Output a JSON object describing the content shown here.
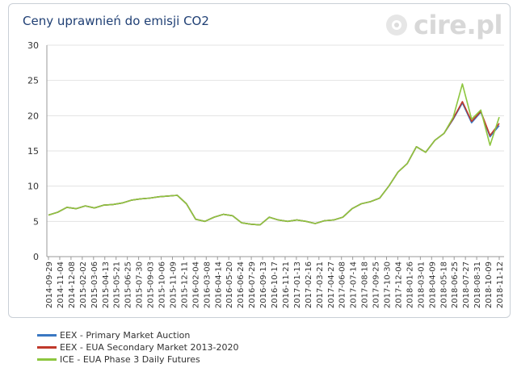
{
  "title": "Ceny uprawnień do emisji CO2",
  "logo": {
    "text": "cire.pl"
  },
  "chart_data": {
    "type": "line",
    "title": "Ceny uprawnień do emisji CO2",
    "xlabel": "",
    "ylabel": "",
    "ylim": [
      0,
      30
    ],
    "yticks": [
      "0",
      "5",
      "10",
      "15",
      "20",
      "25",
      "30"
    ],
    "grid": "horizontal",
    "legend_position": "bottom-left",
    "x_tick_labels": [
      "2014-09-29",
      "2014-11-04",
      "2014-12-08",
      "2015-02-02",
      "2015-03-06",
      "2015-04-13",
      "2015-05-21",
      "2015-06-25",
      "2015-07-30",
      "2015-09-03",
      "2015-10-06",
      "2015-11-09",
      "2015-12-11",
      "2016-02-04",
      "2016-03-08",
      "2016-04-14",
      "2016-05-20",
      "2016-06-24",
      "2016-07-29",
      "2016-09-13",
      "2016-10-17",
      "2016-11-21",
      "2017-01-13",
      "2017-02-16",
      "2017-03-21",
      "2017-04-27",
      "2017-06-08",
      "2017-07-14",
      "2017-08-18",
      "2017-09-25",
      "2017-10-30",
      "2017-12-04",
      "2018-01-26",
      "2018-03-01",
      "2018-04-09",
      "2018-05-18",
      "2018-06-25",
      "2018-07-27",
      "2018-08-31",
      "2018-10-09",
      "2018-11-12"
    ],
    "series": [
      {
        "name": "EEX - Primary Market Auction",
        "color": "#3a78c2",
        "values": [
          5.9,
          6.3,
          7.0,
          6.8,
          7.2,
          6.9,
          7.3,
          7.4,
          7.6,
          8.0,
          8.2,
          8.3,
          8.5,
          8.6,
          8.7,
          7.5,
          5.3,
          5.0,
          5.6,
          6.0,
          5.8,
          4.8,
          4.6,
          4.5,
          5.6,
          5.2,
          5.0,
          5.2,
          5.0,
          4.7,
          5.1,
          5.2,
          5.6,
          6.8,
          7.5,
          7.8,
          8.3,
          10.0,
          12.0,
          13.2,
          15.6,
          14.8,
          16.5,
          17.5,
          19.5,
          21.8,
          19.0,
          20.5,
          17.0,
          18.6
        ]
      },
      {
        "name": "EEX - EUA Secondary Market 2013-2020",
        "color": "#c0392b",
        "values": [
          5.9,
          6.3,
          7.0,
          6.8,
          7.2,
          6.9,
          7.3,
          7.4,
          7.6,
          8.0,
          8.2,
          8.3,
          8.5,
          8.6,
          8.7,
          7.5,
          5.3,
          5.0,
          5.6,
          6.0,
          5.8,
          4.8,
          4.6,
          4.5,
          5.6,
          5.2,
          5.0,
          5.2,
          5.0,
          4.7,
          5.1,
          5.2,
          5.6,
          6.8,
          7.5,
          7.8,
          8.3,
          10.0,
          12.0,
          13.2,
          15.6,
          14.8,
          16.5,
          17.5,
          19.6,
          22.0,
          19.2,
          20.6,
          17.2,
          18.9
        ]
      },
      {
        "name": "ICE - EUA Phase 3 Daily Futures",
        "color": "#8dc63f",
        "values": [
          5.9,
          6.3,
          7.0,
          6.8,
          7.2,
          6.9,
          7.3,
          7.4,
          7.6,
          8.0,
          8.2,
          8.3,
          8.5,
          8.6,
          8.7,
          7.5,
          5.3,
          5.0,
          5.6,
          6.0,
          5.8,
          4.8,
          4.6,
          4.5,
          5.6,
          5.2,
          5.0,
          5.2,
          5.0,
          4.7,
          5.1,
          5.2,
          5.6,
          6.8,
          7.5,
          7.8,
          8.3,
          10.0,
          12.0,
          13.2,
          15.6,
          14.8,
          16.5,
          17.5,
          19.8,
          24.5,
          19.5,
          20.8,
          15.8,
          19.8
        ]
      }
    ]
  }
}
